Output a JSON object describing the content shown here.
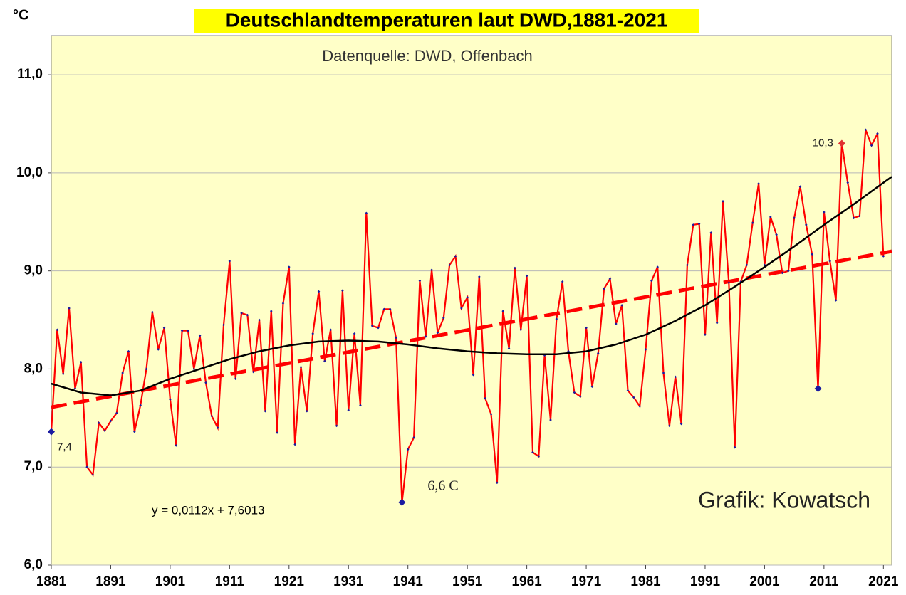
{
  "chart_data": {
    "type": "line",
    "title": "Deutschlandtemperaturen laut DWD,1881-2021",
    "subtitle": "Datenquelle: DWD, Offenbach",
    "y_unit": "°C",
    "trend_equation": "y = 0,0112x + 7,6013",
    "credit": "Grafik: Kowatsch",
    "x": [
      1881,
      1882,
      1883,
      1884,
      1885,
      1886,
      1887,
      1888,
      1889,
      1890,
      1891,
      1892,
      1893,
      1894,
      1895,
      1896,
      1897,
      1898,
      1899,
      1900,
      1901,
      1902,
      1903,
      1904,
      1905,
      1906,
      1907,
      1908,
      1909,
      1910,
      1911,
      1912,
      1913,
      1914,
      1915,
      1916,
      1917,
      1918,
      1919,
      1920,
      1921,
      1922,
      1923,
      1924,
      1925,
      1926,
      1927,
      1928,
      1929,
      1930,
      1931,
      1932,
      1933,
      1934,
      1935,
      1936,
      1937,
      1938,
      1939,
      1940,
      1941,
      1942,
      1943,
      1944,
      1945,
      1946,
      1947,
      1948,
      1949,
      1950,
      1951,
      1952,
      1953,
      1954,
      1955,
      1956,
      1957,
      1958,
      1959,
      1960,
      1961,
      1962,
      1963,
      1964,
      1965,
      1966,
      1967,
      1968,
      1969,
      1970,
      1971,
      1972,
      1973,
      1974,
      1975,
      1976,
      1977,
      1978,
      1979,
      1980,
      1981,
      1982,
      1983,
      1984,
      1985,
      1986,
      1987,
      1988,
      1989,
      1990,
      1991,
      1992,
      1993,
      1994,
      1995,
      1996,
      1997,
      1998,
      1999,
      2000,
      2001,
      2002,
      2003,
      2004,
      2005,
      2006,
      2007,
      2008,
      2009,
      2010,
      2011,
      2012,
      2013,
      2014,
      2015,
      2016,
      2017,
      2018,
      2019,
      2020,
      2021
    ],
    "series": [
      {
        "color": "#ff0000",
        "marker_color": "#1a1aa0",
        "values": [
          7.36,
          8.4,
          7.95,
          8.62,
          7.8,
          8.07,
          7.0,
          6.92,
          7.45,
          7.37,
          7.47,
          7.55,
          7.96,
          8.18,
          7.36,
          7.63,
          8.0,
          8.58,
          8.2,
          8.42,
          7.69,
          7.22,
          8.39,
          8.39,
          8.0,
          8.34,
          7.86,
          7.52,
          7.4,
          8.45,
          9.1,
          7.9,
          8.57,
          8.55,
          7.97,
          8.5,
          7.57,
          8.59,
          7.35,
          8.67,
          9.04,
          7.23,
          8.02,
          7.57,
          8.36,
          8.79,
          8.08,
          8.4,
          7.42,
          8.8,
          7.58,
          8.36,
          7.63,
          9.59,
          8.44,
          8.42,
          8.61,
          8.61,
          8.32,
          6.64,
          7.18,
          7.3,
          8.9,
          8.33,
          9.01,
          8.37,
          8.52,
          9.06,
          9.15,
          8.62,
          8.73,
          7.94,
          8.94,
          7.7,
          7.54,
          6.84,
          8.59,
          8.21,
          9.03,
          8.4,
          8.95,
          7.15,
          7.11,
          8.14,
          7.48,
          8.51,
          8.89,
          8.18,
          7.76,
          7.72,
          8.42,
          7.82,
          8.16,
          8.82,
          8.92,
          8.46,
          8.65,
          7.78,
          7.71,
          7.62,
          8.2,
          8.9,
          9.04,
          7.96,
          7.42,
          7.92,
          7.44,
          9.06,
          9.47,
          9.48,
          8.35,
          9.39,
          8.47,
          9.71,
          8.88,
          7.2,
          8.89,
          9.06,
          9.49,
          9.89,
          9.06,
          9.55,
          9.37,
          8.98,
          9.0,
          9.54,
          9.86,
          9.47,
          9.17,
          7.8,
          9.6,
          9.1,
          8.7,
          10.3,
          9.9,
          9.54,
          9.56,
          10.44,
          10.28,
          10.4,
          9.15
        ],
        "value_labels": [
          "7,4",
          null,
          null,
          null,
          null,
          null,
          null,
          null,
          null,
          null,
          null,
          null,
          null,
          null,
          null,
          null,
          null,
          null,
          null,
          null,
          null,
          null,
          null,
          null,
          null,
          null,
          null,
          null,
          null,
          null,
          null,
          null,
          null,
          null,
          null,
          null,
          null,
          null,
          null,
          null,
          null,
          null,
          null,
          null,
          null,
          null,
          null,
          null,
          null,
          null,
          null,
          null,
          null,
          null,
          null,
          null,
          null,
          null,
          null,
          "6,6 C",
          null,
          null,
          null,
          null,
          null,
          null,
          null,
          null,
          null,
          null,
          null,
          null,
          null,
          null,
          null,
          null,
          null,
          null,
          null,
          null,
          null,
          null,
          null,
          null,
          null,
          null,
          null,
          null,
          null,
          null,
          null,
          null,
          null,
          null,
          null,
          null,
          null,
          null,
          null,
          null,
          null,
          null,
          null,
          null,
          null,
          null,
          null,
          null,
          null,
          null,
          null,
          null,
          null,
          null,
          null,
          null,
          null,
          null,
          null,
          null,
          null,
          null,
          null,
          null,
          null,
          null,
          null,
          null,
          null,
          null,
          null,
          null,
          null,
          "10,3",
          null,
          null,
          null,
          null,
          null,
          null,
          null
        ]
      }
    ],
    "linear_trend": {
      "color": "#ff0000",
      "x": [
        1881,
        2022.4
      ],
      "values": [
        7.61,
        9.2
      ]
    },
    "polynomial_trend": {
      "color": "#000000",
      "x": [
        1881,
        1886,
        1891,
        1896,
        1901,
        1906,
        1911,
        1916,
        1921,
        1926,
        1931,
        1936,
        1941,
        1946,
        1951,
        1956,
        1961,
        1966,
        1971,
        1976,
        1981,
        1986,
        1991,
        1996,
        2001,
        2006,
        2011,
        2016,
        2021,
        2022.4
      ],
      "values": [
        7.85,
        7.76,
        7.73,
        7.78,
        7.9,
        8.0,
        8.1,
        8.18,
        8.24,
        8.28,
        8.29,
        8.28,
        8.25,
        8.21,
        8.18,
        8.16,
        8.15,
        8.15,
        8.18,
        8.25,
        8.35,
        8.49,
        8.65,
        8.84,
        9.04,
        9.25,
        9.47,
        9.68,
        9.9,
        9.96
      ]
    },
    "xlim": [
      1881,
      2022.4
    ],
    "xticks": [
      1881,
      1891,
      1901,
      1911,
      1921,
      1931,
      1941,
      1951,
      1961,
      1971,
      1981,
      1991,
      2001,
      2011,
      2021
    ],
    "ylim": [
      6,
      11.4
    ],
    "yticks": [
      {
        "value": 6,
        "label": "6,0"
      },
      {
        "value": 7,
        "label": "7,0"
      },
      {
        "value": 8,
        "label": "8,0"
      },
      {
        "value": 9,
        "label": "9,0"
      },
      {
        "value": 10,
        "label": "10,0"
      },
      {
        "value": 11,
        "label": "11,0"
      }
    ],
    "grid": true,
    "plot_background": "#ffffc8",
    "title_background": "#ffff00"
  }
}
